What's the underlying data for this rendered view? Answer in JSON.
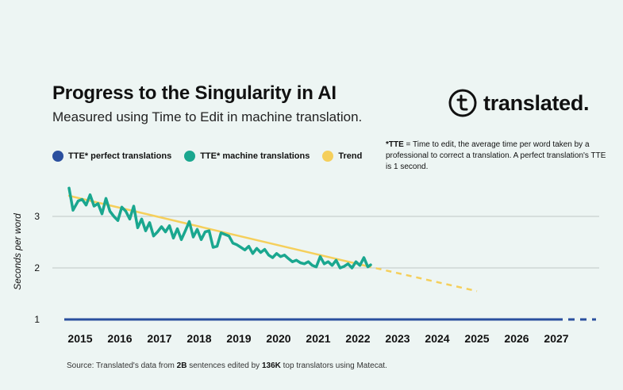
{
  "title": "Progress to the Singularity in AI",
  "subtitle": "Measured using Time to Edit in machine translation.",
  "brand": {
    "name": "translated.",
    "icon": "translated-logo-icon"
  },
  "legend": [
    {
      "label": "TTE* perfect translations",
      "color": "#2a4f9e"
    },
    {
      "label": "TTE* machine translations",
      "color": "#1aa78f"
    },
    {
      "label": "Trend",
      "color": "#f5cf5b"
    }
  ],
  "note": {
    "term": "*TTE",
    "text": " = Time to edit, the average time per word taken by a professional to correct a translation. A perfect translation's TTE is 1 second."
  },
  "source": {
    "prefix": "Source: Translated's data from ",
    "n1": "2B",
    "middle": " sentences edited by ",
    "n2": "136K",
    "suffix": " top translators using Matecat."
  },
  "chart_data": {
    "type": "line",
    "ylabel": "Seconds per word",
    "xlabel": "",
    "xlim": [
      2014.6,
      2028.0
    ],
    "ylim": [
      0.95,
      3.7
    ],
    "x_ticks": [
      2015,
      2016,
      2017,
      2018,
      2019,
      2020,
      2021,
      2022,
      2023,
      2024,
      2025,
      2026,
      2027
    ],
    "y_ticks": [
      1,
      2,
      3
    ],
    "grid": "horizontal",
    "legend_position": "top-left",
    "series": [
      {
        "name": "TTE* perfect translations",
        "color": "#2a4f9e",
        "solid": {
          "x": [
            2014.6,
            2027.0
          ],
          "y": [
            1,
            1
          ]
        },
        "dashed": {
          "x": [
            2027.0,
            2028.0
          ],
          "y": [
            1,
            1
          ]
        }
      },
      {
        "name": "TTE* machine translations",
        "color": "#1aa78f",
        "x": [
          2014.72,
          2014.82,
          2014.95,
          2015.05,
          2015.15,
          2015.25,
          2015.35,
          2015.45,
          2015.55,
          2015.65,
          2015.75,
          2015.85,
          2015.95,
          2016.05,
          2016.15,
          2016.25,
          2016.35,
          2016.45,
          2016.55,
          2016.65,
          2016.75,
          2016.85,
          2016.95,
          2017.05,
          2017.15,
          2017.25,
          2017.35,
          2017.45,
          2017.55,
          2017.65,
          2017.75,
          2017.85,
          2017.95,
          2018.05,
          2018.15,
          2018.25,
          2018.35,
          2018.45,
          2018.55,
          2018.65,
          2018.75,
          2018.85,
          2018.95,
          2019.05,
          2019.15,
          2019.25,
          2019.35,
          2019.45,
          2019.55,
          2019.65,
          2019.75,
          2019.85,
          2019.95,
          2020.05,
          2020.15,
          2020.25,
          2020.35,
          2020.45,
          2020.55,
          2020.65,
          2020.75,
          2020.85,
          2020.95,
          2021.05,
          2021.15,
          2021.25,
          2021.35,
          2021.45,
          2021.55,
          2021.65,
          2021.75,
          2021.85,
          2021.95,
          2022.05,
          2022.15,
          2022.25,
          2022.32
        ],
        "y": [
          3.55,
          3.12,
          3.3,
          3.33,
          3.22,
          3.42,
          3.2,
          3.25,
          3.05,
          3.35,
          3.1,
          3.0,
          2.92,
          3.18,
          3.1,
          2.95,
          3.2,
          2.78,
          2.95,
          2.72,
          2.88,
          2.62,
          2.7,
          2.8,
          2.7,
          2.82,
          2.58,
          2.76,
          2.55,
          2.72,
          2.9,
          2.6,
          2.75,
          2.55,
          2.7,
          2.72,
          2.4,
          2.42,
          2.68,
          2.65,
          2.62,
          2.48,
          2.45,
          2.4,
          2.35,
          2.42,
          2.28,
          2.38,
          2.3,
          2.36,
          2.25,
          2.2,
          2.28,
          2.22,
          2.25,
          2.18,
          2.12,
          2.15,
          2.1,
          2.08,
          2.12,
          2.05,
          2.02,
          2.22,
          2.08,
          2.12,
          2.05,
          2.15,
          2.0,
          2.03,
          2.08,
          2.0,
          2.12,
          2.05,
          2.2,
          2.02,
          2.06
        ]
      },
      {
        "name": "Trend",
        "color": "#f5cf5b",
        "solid": {
          "x": [
            2014.72,
            2022.2
          ],
          "y": [
            3.4,
            2.04
          ]
        },
        "dashed": {
          "x": [
            2022.2,
            2025.0
          ],
          "y": [
            2.04,
            1.55
          ]
        }
      }
    ]
  }
}
